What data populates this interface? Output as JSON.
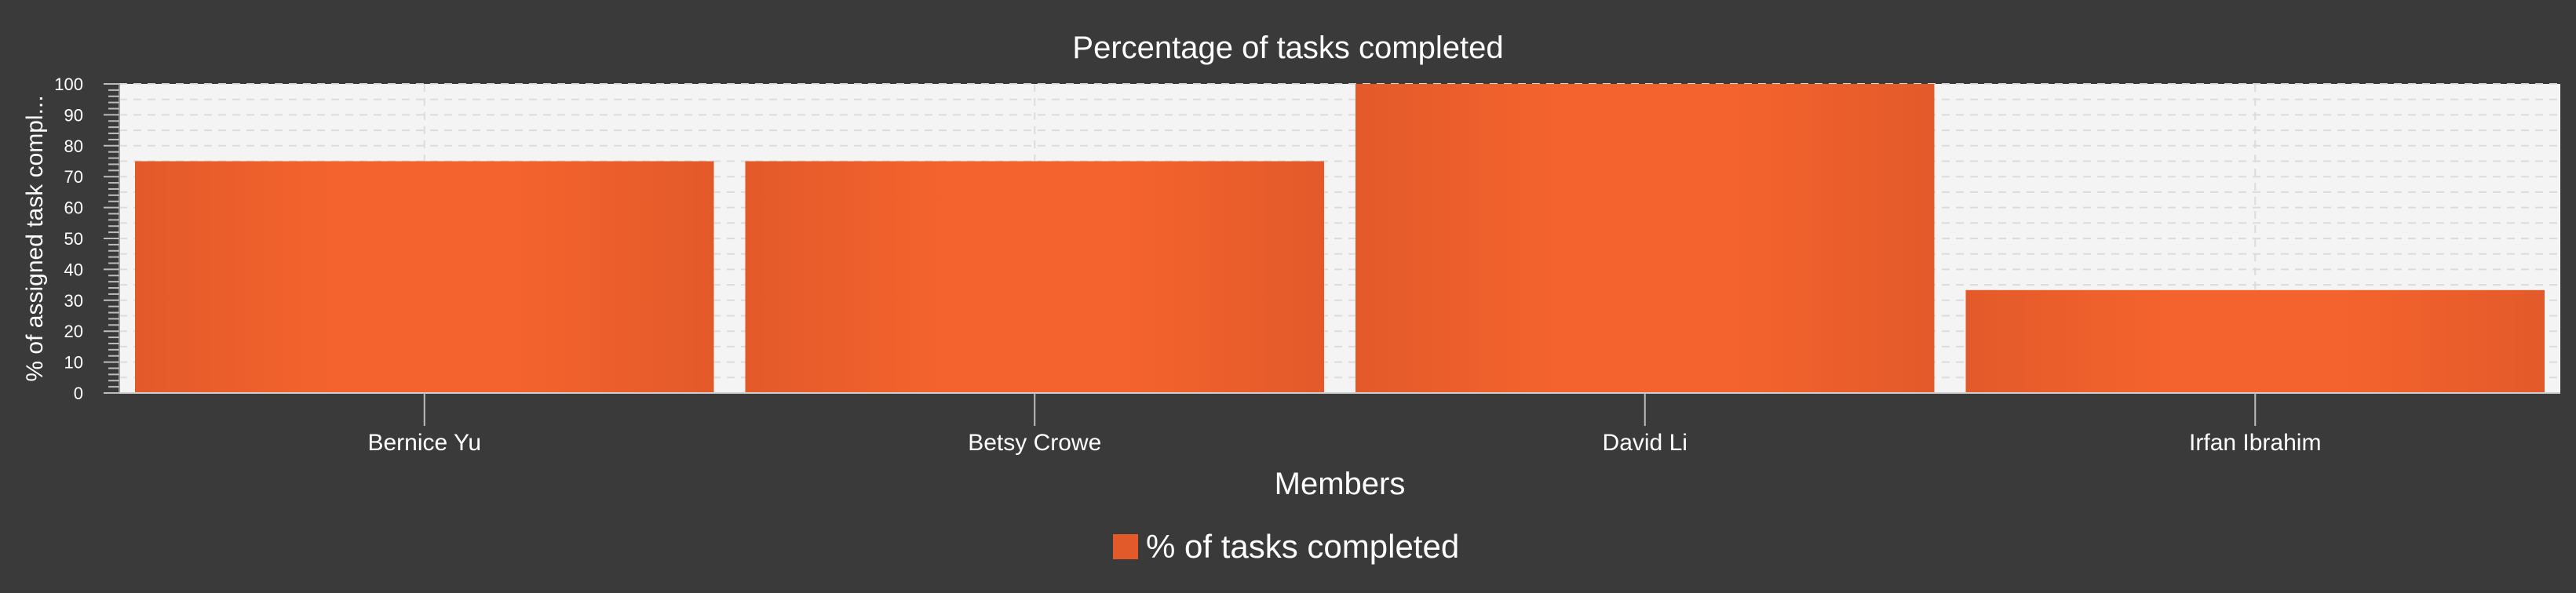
{
  "chart_data": {
    "type": "bar",
    "title": "Percentage of tasks completed",
    "xlabel": "Members",
    "ylabel": "% of assigned task compl...",
    "categories": [
      "Bernice Yu",
      "Betsy Crowe",
      "David Li",
      "Irfan Ibrahim"
    ],
    "series": [
      {
        "name": "% of tasks completed",
        "values": [
          75,
          75,
          100,
          33.3
        ]
      }
    ],
    "ylim": [
      0,
      100
    ],
    "yticks": [
      "0",
      "10",
      "20",
      "30",
      "40",
      "50",
      "60",
      "70",
      "80",
      "90",
      "100"
    ],
    "grid": true,
    "legend": "bottom-center"
  },
  "colors": {
    "background": "#3a3a3a",
    "plot_background": "#f4f4f4",
    "bar": "#f0602c",
    "bar_edge": "#e35a2a",
    "gridline": "#d8d8d8",
    "text": "#ffffff"
  }
}
